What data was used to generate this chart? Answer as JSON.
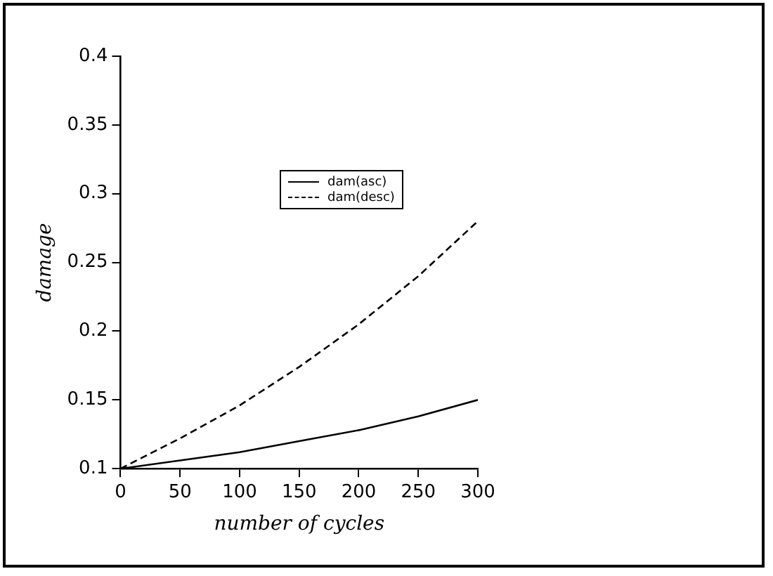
{
  "chart_data": {
    "type": "line",
    "xlabel": "number of cycles",
    "ylabel": "damage",
    "x": [
      0,
      50,
      100,
      150,
      200,
      250,
      300
    ],
    "series": [
      {
        "name": "dam(asc)",
        "color": "#000000",
        "line_style": "solid",
        "values": [
          0.1,
          0.106,
          0.112,
          0.12,
          0.128,
          0.138,
          0.15
        ]
      },
      {
        "name": "dam(desc)",
        "color": "#000000",
        "line_style": "dashed",
        "values": [
          0.1,
          0.122,
          0.146,
          0.174,
          0.205,
          0.24,
          0.28
        ]
      }
    ],
    "xlim": [
      0,
      300
    ],
    "xticks": [
      0,
      50,
      100,
      150,
      200,
      250,
      300
    ],
    "ylim": [
      0.1,
      0.4
    ],
    "yticks": [
      0.1,
      0.15,
      0.2,
      0.25,
      0.3,
      0.35,
      0.4
    ],
    "grid": false,
    "legend": "top right",
    "marker": "none"
  }
}
